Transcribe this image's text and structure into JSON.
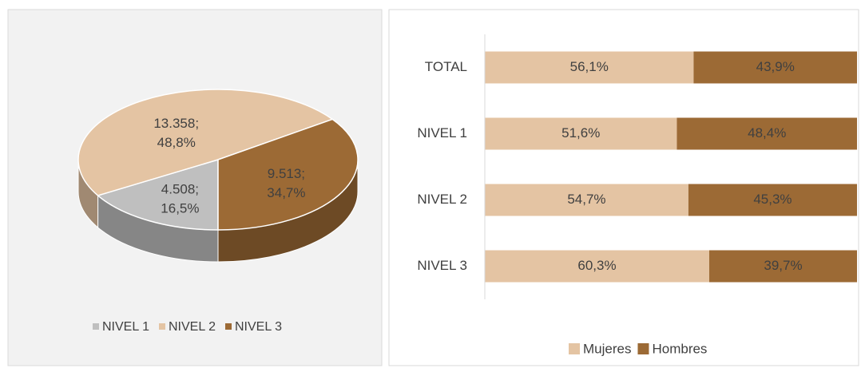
{
  "chart_data": [
    {
      "type": "pie3d",
      "categories": [
        "NIVEL 1",
        "NIVEL 2",
        "NIVEL 3"
      ],
      "values": [
        4508,
        13358,
        9513
      ],
      "value_labels": [
        "4.508;",
        "13.358;",
        "9.513;"
      ],
      "percents": [
        16.5,
        48.8,
        34.7
      ],
      "percent_labels": [
        "16,5%",
        "48,8%",
        "34,7%"
      ],
      "colors": [
        "#bfbfbf",
        "#e4c4a3",
        "#9c6a35"
      ],
      "legend": "bottom"
    },
    {
      "type": "stacked_barh",
      "categories": [
        "TOTAL",
        "NIVEL 1",
        "NIVEL 2",
        "NIVEL 3"
      ],
      "series": [
        {
          "name": "Mujeres",
          "color": "#e4c4a3",
          "values": [
            56.1,
            51.6,
            54.7,
            60.3
          ],
          "value_labels": [
            "56,1%",
            "51,6%",
            "54,7%",
            "60,3%"
          ]
        },
        {
          "name": "Hombres",
          "color": "#9c6a35",
          "values": [
            43.9,
            48.4,
            45.3,
            39.7
          ],
          "value_labels": [
            "43,9%",
            "48,4%",
            "45,3%",
            "39,7%"
          ]
        }
      ],
      "xlim": [
        0,
        100
      ],
      "legend": "bottom"
    }
  ]
}
